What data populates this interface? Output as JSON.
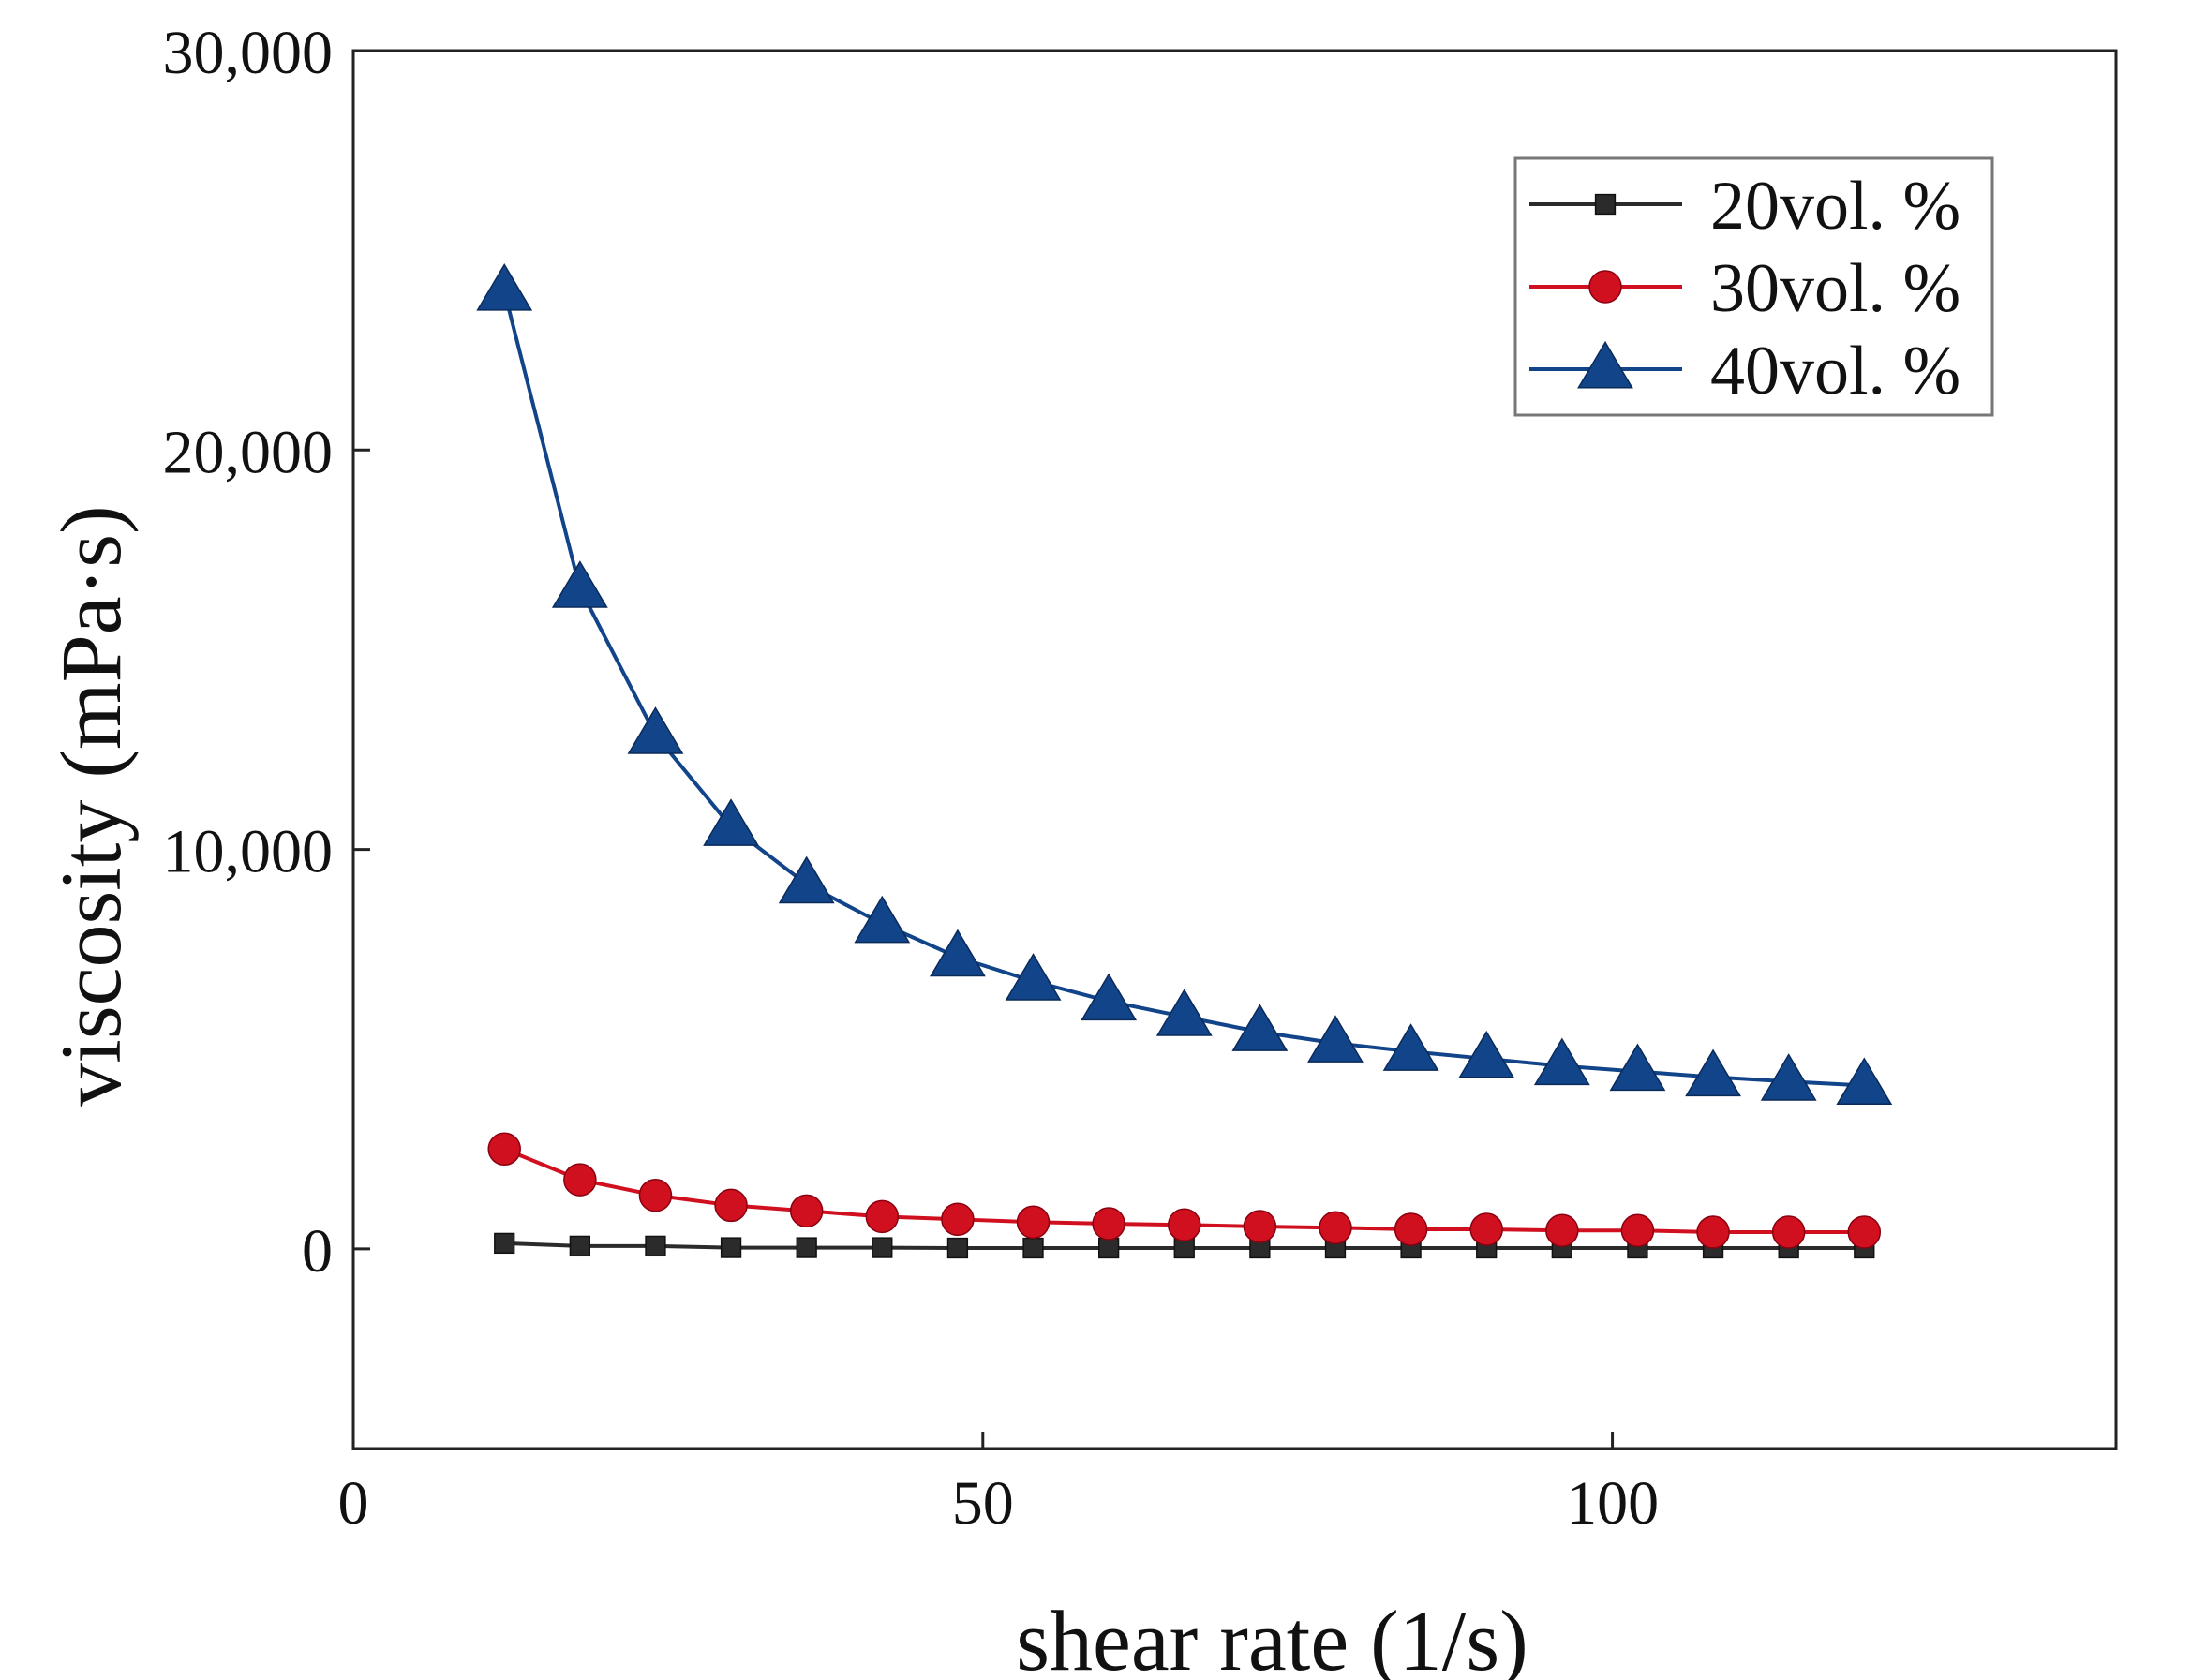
{
  "chart_data": {
    "type": "line",
    "title": "",
    "xlabel": "shear rate  (1/s)",
    "ylabel": "viscosity (mPa·s)",
    "xlim": [
      0,
      140
    ],
    "ylim": [
      -5000,
      30000
    ],
    "xticks": [
      0,
      50,
      100
    ],
    "xtick_labels": [
      "0",
      "50",
      "100"
    ],
    "yticks": [
      0,
      10000,
      20000,
      30000
    ],
    "ytick_labels": [
      "0",
      "10,000",
      "20,000",
      "30,000"
    ],
    "grid": false,
    "legend_position": "top-right",
    "x": [
      12,
      18,
      24,
      30,
      36,
      42,
      48,
      54,
      60,
      66,
      72,
      78,
      84,
      90,
      96,
      102,
      108,
      114,
      120
    ],
    "series": [
      {
        "name": "20vol. %",
        "color": "#2b2b2b",
        "marker": "square",
        "values": [
          140,
          70,
          70,
          30,
          30,
          30,
          20,
          20,
          20,
          20,
          20,
          20,
          20,
          20,
          20,
          20,
          20,
          20,
          20
        ]
      },
      {
        "name": "30vol. %",
        "color": "#d0101e",
        "marker": "circle",
        "values": [
          2500,
          1730,
          1340,
          1090,
          950,
          810,
          740,
          670,
          630,
          600,
          560,
          530,
          490,
          490,
          460,
          460,
          420,
          420,
          420
        ]
      },
      {
        "name": "40vol. %",
        "color": "#12448a",
        "marker": "triangle",
        "values": [
          23970,
          16530,
          12870,
          10570,
          9130,
          8140,
          7300,
          6700,
          6200,
          5810,
          5430,
          5150,
          4940,
          4760,
          4580,
          4440,
          4300,
          4190,
          4090
        ]
      }
    ]
  }
}
